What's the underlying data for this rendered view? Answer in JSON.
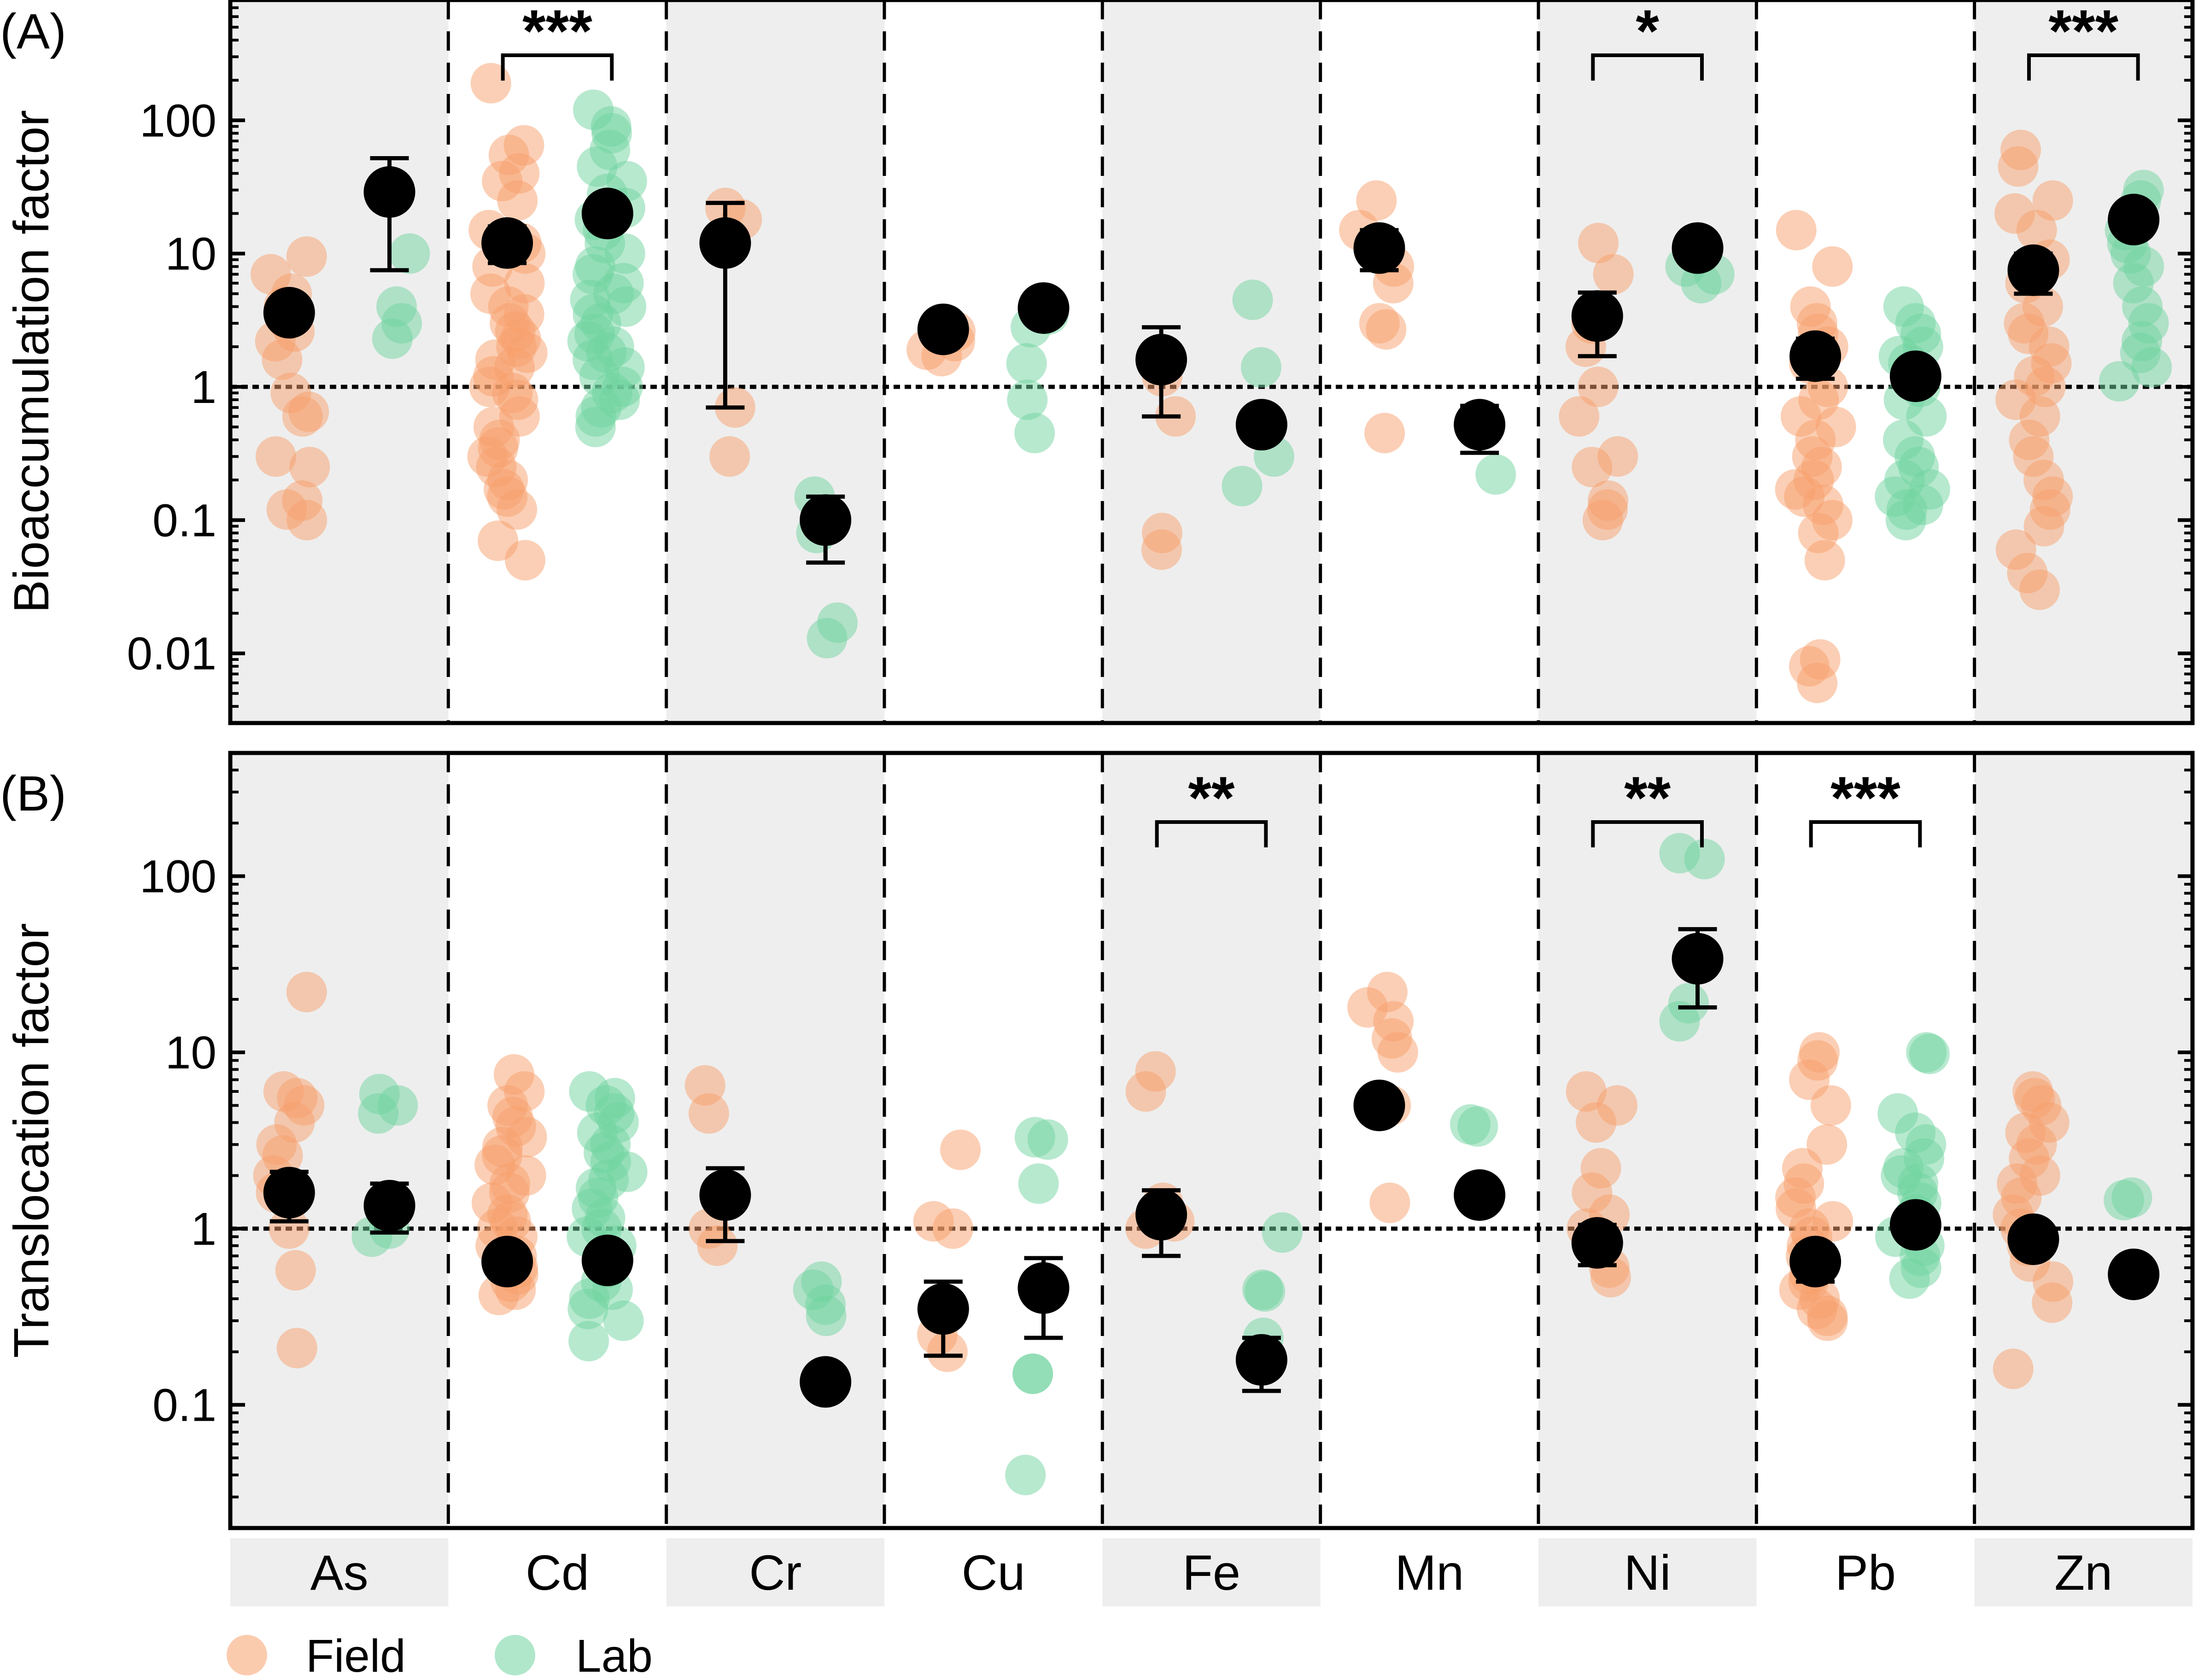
{
  "colors": {
    "field": "#f7a06c",
    "lab": "#6fd3a0",
    "mean": "#000000",
    "band": "#eeeeee"
  },
  "categories": [
    "As",
    "Cd",
    "Cr",
    "Cu",
    "Fe",
    "Mn",
    "Ni",
    "Pb",
    "Zn"
  ],
  "legend": {
    "field": "Field",
    "lab": "Lab"
  },
  "chart_data": [
    {
      "type": "scatter",
      "panel_label": "(A)",
      "ylabel": "Bioaccumulation factor",
      "yscale": "log",
      "ylim": [
        0.003,
        800
      ],
      "yticks": [
        0.01,
        0.1,
        1,
        10,
        100
      ],
      "ytick_labels": [
        "0.01",
        "0.1",
        "1",
        "10",
        "100"
      ],
      "reference_line": 1,
      "categories": [
        "As",
        "Cd",
        "Cr",
        "Cu",
        "Fe",
        "Mn",
        "Ni",
        "Pb",
        "Zn"
      ],
      "series": [
        {
          "name": "Field",
          "points": {
            "As": [
              9.5,
              7,
              5,
              4,
              3.2,
              2.6,
              2.2,
              1.6,
              0.9,
              0.65,
              0.6,
              0.3,
              0.25,
              0.14,
              0.12,
              0.1
            ],
            "Cd": [
              190,
              65,
              55,
              40,
              35,
              25,
              15,
              12,
              10,
              8,
              6,
              5,
              4,
              3.5,
              3,
              2.6,
              2.3,
              2,
              1.8,
              1.6,
              1.4,
              1.2,
              1,
              0.9,
              0.8,
              0.6,
              0.5,
              0.4,
              0.35,
              0.3,
              0.25,
              0.2,
              0.17,
              0.15,
              0.12,
              0.07,
              0.05
            ],
            "Cr": [
              22,
              18,
              0.7,
              0.3
            ],
            "Cu": [
              2.6,
              2.2,
              1.9,
              1.7
            ],
            "Fe": [
              1.2,
              0.6,
              0.08,
              0.06
            ],
            "Mn": [
              25,
              15,
              8,
              6,
              3,
              2.7,
              0.45
            ],
            "Ni": [
              12,
              7,
              3,
              2,
              1,
              0.6,
              0.3,
              0.25,
              0.14,
              0.12,
              0.1
            ],
            "Pb": [
              15,
              8,
              4,
              3,
              2.5,
              2,
              1.5,
              1,
              0.8,
              0.6,
              0.5,
              0.4,
              0.3,
              0.25,
              0.2,
              0.17,
              0.15,
              0.13,
              0.1,
              0.08,
              0.05,
              0.009,
              0.008,
              0.006
            ],
            "Zn": [
              60,
              45,
              25,
              20,
              15,
              9,
              6,
              4,
              3,
              2.5,
              2,
              1.5,
              1.2,
              1,
              0.8,
              0.6,
              0.4,
              0.3,
              0.2,
              0.15,
              0.12,
              0.09,
              0.06,
              0.04,
              0.03
            ]
          }
        },
        {
          "name": "Lab",
          "points": {
            "As": [
              10,
              4,
              3,
              2.3
            ],
            "Cd": [
              120,
              90,
              80,
              60,
              45,
              35,
              28,
              22,
              18,
              15,
              12,
              10,
              8,
              7,
              6,
              5,
              4.5,
              4,
              3.5,
              3,
              2.5,
              2.2,
              2,
              1.8,
              1.6,
              1.4,
              1.2,
              1,
              0.9,
              0.8,
              0.7,
              0.6,
              0.5
            ],
            "Cr": [
              0.15,
              0.08,
              0.017,
              0.013
            ],
            "Cu": [
              4,
              3.5,
              2.8,
              1.5,
              0.8,
              0.45
            ],
            "Fe": [
              4.5,
              1.4,
              0.5,
              0.3,
              0.18
            ],
            "Mn": [
              0.5,
              0.22
            ],
            "Ni": [
              8,
              7,
              6
            ],
            "Pb": [
              4,
              3,
              2.5,
              2,
              1.7,
              1.5,
              1.3,
              1,
              0.8,
              0.6,
              0.4,
              0.3,
              0.25,
              0.2,
              0.17,
              0.15,
              0.13,
              0.12,
              0.1
            ],
            "Zn": [
              30,
              25,
              20,
              15,
              12,
              10,
              8,
              6,
              4,
              3,
              2.2,
              1.8,
              1.4,
              1.1
            ]
          }
        }
      ],
      "means": [
        {
          "category": "As",
          "group": "Field",
          "mean": 3.6,
          "lower": 3.3,
          "upper": 4.0
        },
        {
          "category": "As",
          "group": "Lab",
          "mean": 29,
          "lower": 7.5,
          "upper": 52
        },
        {
          "category": "Cd",
          "group": "Field",
          "mean": 12,
          "lower": 8.5,
          "upper": 16
        },
        {
          "category": "Cd",
          "group": "Lab",
          "mean": 20,
          "lower": 18,
          "upper": 22
        },
        {
          "category": "Cr",
          "group": "Field",
          "mean": 12,
          "lower": 0.7,
          "upper": 24
        },
        {
          "category": "Cr",
          "group": "Lab",
          "mean": 0.1,
          "lower": 0.048,
          "upper": 0.15
        },
        {
          "category": "Cu",
          "group": "Field",
          "mean": 2.7,
          "lower": 2.5,
          "upper": 2.9
        },
        {
          "category": "Cu",
          "group": "Lab",
          "mean": 3.9,
          "lower": 3.0,
          "upper": 4.6
        },
        {
          "category": "Fe",
          "group": "Field",
          "mean": 1.6,
          "lower": 0.6,
          "upper": 2.8
        },
        {
          "category": "Fe",
          "group": "Lab",
          "mean": 0.52,
          "lower": 0.45,
          "upper": 0.6
        },
        {
          "category": "Mn",
          "group": "Field",
          "mean": 11,
          "lower": 7.5,
          "upper": 15
        },
        {
          "category": "Mn",
          "group": "Lab",
          "mean": 0.52,
          "lower": 0.32,
          "upper": 0.72
        },
        {
          "category": "Ni",
          "group": "Field",
          "mean": 3.4,
          "lower": 1.7,
          "upper": 5.1
        },
        {
          "category": "Ni",
          "group": "Lab",
          "mean": 11,
          "lower": 10.5,
          "upper": 11.5
        },
        {
          "category": "Pb",
          "group": "Field",
          "mean": 1.7,
          "lower": 1.15,
          "upper": 2.3
        },
        {
          "category": "Pb",
          "group": "Lab",
          "mean": 1.2,
          "lower": 1.1,
          "upper": 1.3
        },
        {
          "category": "Zn",
          "group": "Field",
          "mean": 7.5,
          "lower": 5,
          "upper": 10
        },
        {
          "category": "Zn",
          "group": "Lab",
          "mean": 18,
          "lower": 16,
          "upper": 20
        }
      ],
      "significance": [
        {
          "category": "Cd",
          "label": "***"
        },
        {
          "category": "Ni",
          "label": "*"
        },
        {
          "category": "Zn",
          "label": "***"
        }
      ]
    },
    {
      "type": "scatter",
      "panel_label": "(B)",
      "ylabel": "Translocation factor",
      "yscale": "log",
      "ylim": [
        0.02,
        500
      ],
      "yticks": [
        0.1,
        1,
        10,
        100
      ],
      "ytick_labels": [
        "0.1",
        "1",
        "10",
        "100"
      ],
      "reference_line": 1,
      "categories": [
        "As",
        "Cd",
        "Cr",
        "Cu",
        "Fe",
        "Mn",
        "Ni",
        "Pb",
        "Zn"
      ],
      "series": [
        {
          "name": "Field",
          "points": {
            "As": [
              22,
              6,
              5.5,
              5,
              4,
              3,
              2.6,
              2,
              1.6,
              1,
              0.58,
              0.21
            ],
            "Cd": [
              7.5,
              6,
              5,
              4.3,
              3.8,
              3.3,
              2.9,
              2.6,
              2.3,
              2,
              1.8,
              1.6,
              1.4,
              1.2,
              1.1,
              1,
              0.9,
              0.8,
              0.7,
              0.6,
              0.55,
              0.5,
              0.45,
              0.42
            ],
            "Cr": [
              6.5,
              4.5,
              1,
              0.8
            ],
            "Cu": [
              2.8,
              1.1,
              1.0,
              0.25,
              0.2
            ],
            "Fe": [
              7.8,
              6,
              1.4,
              1.1,
              1.0
            ],
            "Mn": [
              22,
              18,
              15,
              12,
              10,
              5,
              1.4
            ],
            "Ni": [
              6,
              5,
              4,
              2.2,
              1.6,
              1.2,
              1,
              0.8,
              0.6,
              0.53
            ],
            "Pb": [
              10,
              9,
              7,
              5,
              3,
              2.2,
              1.8,
              1.5,
              1.3,
              1.1,
              1,
              0.9,
              0.8,
              0.7,
              0.6,
              0.55,
              0.5,
              0.45,
              0.4,
              0.35,
              0.32,
              0.3
            ],
            "Zn": [
              6,
              5.5,
              5,
              4,
              3.5,
              3,
              2.5,
              2,
              1.8,
              1.5,
              1.2,
              1,
              0.8,
              0.65,
              0.5,
              0.38,
              0.16
            ]
          }
        },
        {
          "name": "Lab",
          "points": {
            "As": [
              5.8,
              5,
              4.5,
              1,
              0.9
            ],
            "Cd": [
              6,
              5.5,
              5,
              4.5,
              4,
              3.5,
              3,
              2.7,
              2.4,
              2.1,
              1.9,
              1.7,
              1.5,
              1.3,
              1.15,
              1,
              0.9,
              0.8,
              0.7,
              0.6,
              0.5,
              0.45,
              0.4,
              0.35,
              0.3,
              0.23
            ],
            "Cr": [
              0.5,
              0.45,
              0.37,
              0.32
            ],
            "Cu": [
              3.3,
              3.2,
              1.8,
              0.15,
              0.15,
              0.04
            ],
            "Fe": [
              0.95,
              0.45,
              0.44,
              0.24
            ],
            "Mn": [
              3.9,
              3.8
            ],
            "Ni": [
              135,
              125,
              19,
              15
            ],
            "Pb": [
              10,
              9.8,
              4.5,
              3.5,
              3,
              2.5,
              2.2,
              2,
              1.8,
              1.6,
              1.4,
              1.2,
              1,
              0.9,
              0.8,
              0.7,
              0.6,
              0.52
            ],
            "Zn": [
              1.5,
              1.45
            ]
          }
        }
      ],
      "means": [
        {
          "category": "As",
          "group": "Field",
          "mean": 1.6,
          "lower": 1.1,
          "upper": 2.1
        },
        {
          "category": "As",
          "group": "Lab",
          "mean": 1.35,
          "lower": 0.95,
          "upper": 1.8
        },
        {
          "category": "Cd",
          "group": "Field",
          "mean": 0.65,
          "lower": 0.6,
          "upper": 0.7
        },
        {
          "category": "Cd",
          "group": "Lab",
          "mean": 0.66,
          "lower": 0.61,
          "upper": 0.71
        },
        {
          "category": "Cr",
          "group": "Field",
          "mean": 1.55,
          "lower": 0.85,
          "upper": 2.2
        },
        {
          "category": "Cr",
          "group": "Lab",
          "mean": 0.135,
          "lower": 0.125,
          "upper": 0.145
        },
        {
          "category": "Cu",
          "group": "Field",
          "mean": 0.35,
          "lower": 0.19,
          "upper": 0.5
        },
        {
          "category": "Cu",
          "group": "Lab",
          "mean": 0.46,
          "lower": 0.24,
          "upper": 0.68
        },
        {
          "category": "Fe",
          "group": "Field",
          "mean": 1.2,
          "lower": 0.7,
          "upper": 1.65
        },
        {
          "category": "Fe",
          "group": "Lab",
          "mean": 0.18,
          "lower": 0.12,
          "upper": 0.24
        },
        {
          "category": "Mn",
          "group": "Field",
          "mean": 5,
          "lower": 4.2,
          "upper": 5.8
        },
        {
          "category": "Mn",
          "group": "Lab",
          "mean": 1.55,
          "lower": 1.45,
          "upper": 1.65
        },
        {
          "category": "Ni",
          "group": "Field",
          "mean": 0.83,
          "lower": 0.62,
          "upper": 1.05
        },
        {
          "category": "Ni",
          "group": "Lab",
          "mean": 34,
          "lower": 18,
          "upper": 50
        },
        {
          "category": "Pb",
          "group": "Field",
          "mean": 0.65,
          "lower": 0.5,
          "upper": 0.8
        },
        {
          "category": "Pb",
          "group": "Lab",
          "mean": 1.05,
          "lower": 0.88,
          "upper": 1.22
        },
        {
          "category": "Zn",
          "group": "Field",
          "mean": 0.87,
          "lower": 0.78,
          "upper": 0.96
        },
        {
          "category": "Zn",
          "group": "Lab",
          "mean": 0.55,
          "lower": 0.5,
          "upper": 0.6
        }
      ],
      "significance": [
        {
          "category": "Fe",
          "label": "**"
        },
        {
          "category": "Ni",
          "label": "**"
        },
        {
          "category": "Pb",
          "label": "***"
        }
      ]
    }
  ]
}
